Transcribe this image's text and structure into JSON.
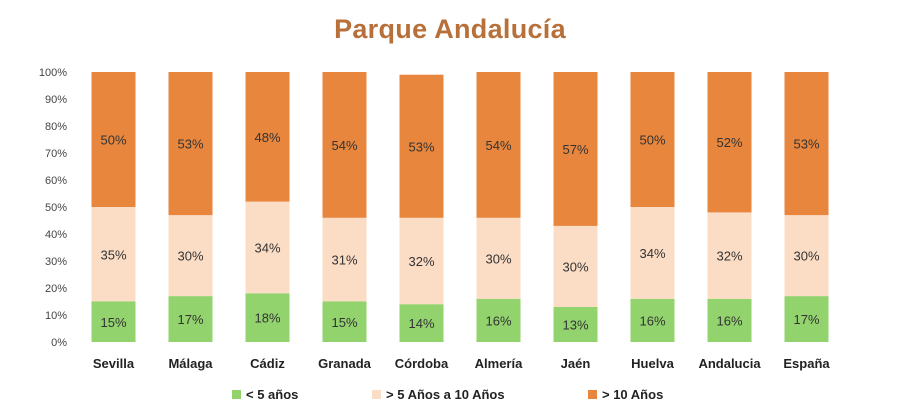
{
  "chart_data": {
    "type": "bar",
    "stacked": true,
    "title": "Parque Andalucía",
    "categories": [
      "Sevilla",
      "Málaga",
      "Cádiz",
      "Granada",
      "Córdoba",
      "Almería",
      "Jaén",
      "Huelva",
      "Andalucia",
      "España"
    ],
    "series": [
      {
        "name": "< 5 años",
        "color": "#92d36e",
        "values": [
          15,
          17,
          18,
          15,
          14,
          16,
          13,
          16,
          16,
          17
        ]
      },
      {
        "name": "> 5 Años a 10 Años",
        "color": "#fbdcc4",
        "values": [
          35,
          30,
          34,
          31,
          32,
          30,
          30,
          34,
          32,
          30
        ]
      },
      {
        "name": "> 10 Años",
        "color": "#e8863d",
        "values": [
          50,
          53,
          48,
          54,
          53,
          54,
          57,
          50,
          52,
          53
        ]
      }
    ],
    "yticks": [
      "0%",
      "10%",
      "20%",
      "30%",
      "40%",
      "50%",
      "60%",
      "70%",
      "80%",
      "90%",
      "100%"
    ],
    "ylim": [
      0,
      100
    ],
    "legend_position": "bottom",
    "grid": false
  }
}
